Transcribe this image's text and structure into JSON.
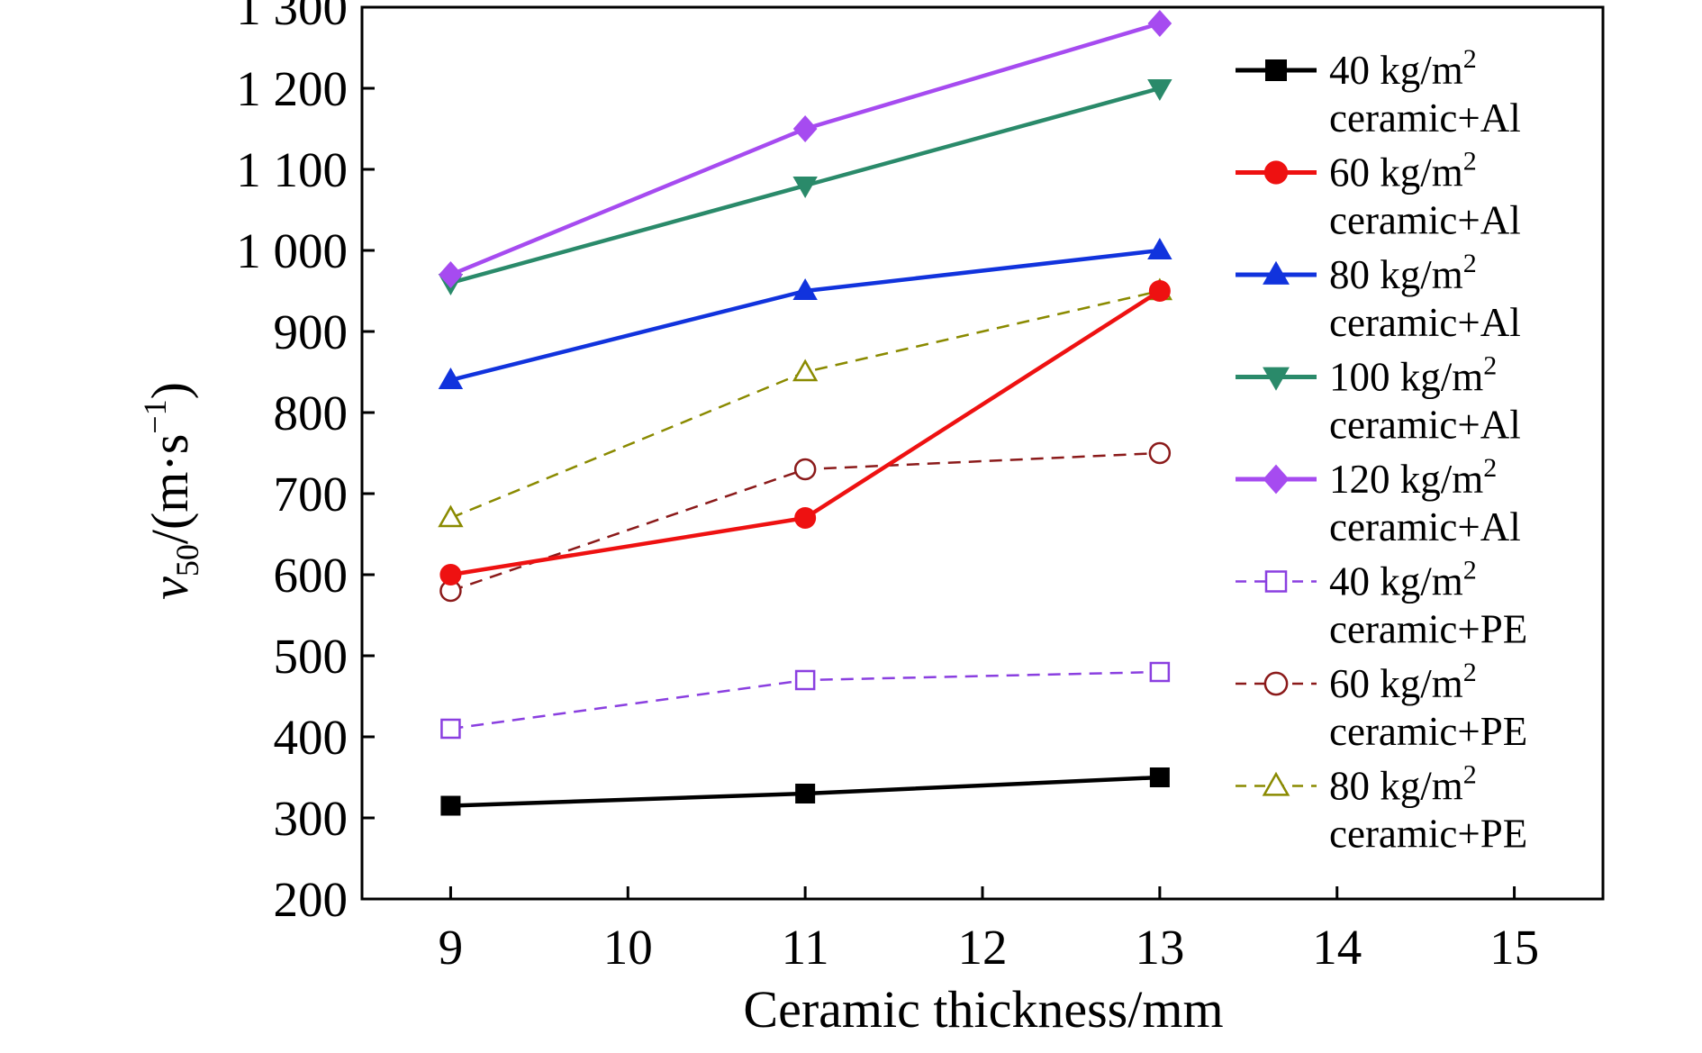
{
  "chart_data": {
    "type": "line",
    "title": "",
    "xlabel": "Ceramic thickness/mm",
    "ylabel": {
      "var": "v",
      "sub": "50",
      "unit_pre": "/(m·s",
      "unit_sup": "−1",
      "unit_post": ")"
    },
    "xlim": [
      8.5,
      15.5
    ],
    "ylim": [
      200,
      1300
    ],
    "x_ticks": [
      9,
      10,
      11,
      12,
      13,
      14,
      15
    ],
    "x_tick_labels": [
      "9",
      "10",
      "11",
      "12",
      "13",
      "14",
      "15"
    ],
    "y_ticks": [
      200,
      300,
      400,
      500,
      600,
      700,
      800,
      900,
      1000,
      1100,
      1200,
      1300
    ],
    "y_tick_labels": [
      "200",
      "300",
      "400",
      "500",
      "600",
      "700",
      "800",
      "900",
      "1 000",
      "1 100",
      "1 200",
      "1 300"
    ],
    "grid": false,
    "legend_position": "right",
    "x": [
      9,
      11,
      13
    ],
    "series": [
      {
        "name_line1": "40 kg/m",
        "name_sup": "2",
        "name_line2": "ceramic+Al",
        "values": [
          315,
          330,
          350
        ],
        "color": "#000000",
        "marker": "square-filled",
        "dashed": false
      },
      {
        "name_line1": "60 kg/m",
        "name_sup": "2",
        "name_line2": "ceramic+Al",
        "values": [
          600,
          670,
          950
        ],
        "color": "#ee1111",
        "marker": "circle-filled",
        "dashed": false
      },
      {
        "name_line1": "80 kg/m",
        "name_sup": "2",
        "name_line2": "ceramic+Al",
        "values": [
          840,
          950,
          1000
        ],
        "color": "#1133dd",
        "marker": "triangle-up-filled",
        "dashed": false
      },
      {
        "name_line1": "100 kg/m",
        "name_sup": "2",
        "name_line2": "ceramic+Al",
        "values": [
          960,
          1080,
          1200
        ],
        "color": "#2a8a6a",
        "marker": "triangle-down-filled",
        "dashed": false
      },
      {
        "name_line1": "120 kg/m",
        "name_sup": "2",
        "name_line2": "ceramic+Al",
        "values": [
          970,
          1150,
          1280
        ],
        "color": "#a64bf0",
        "marker": "diamond-filled",
        "dashed": false
      },
      {
        "name_line1": "40 kg/m",
        "name_sup": "2",
        "name_line2": "ceramic+PE",
        "values": [
          410,
          470,
          480
        ],
        "color": "#8a3fe0",
        "marker": "square-open",
        "dashed": true
      },
      {
        "name_line1": "60 kg/m",
        "name_sup": "2",
        "name_line2": "ceramic+PE",
        "values": [
          580,
          730,
          750
        ],
        "color": "#8b1a1a",
        "marker": "circle-open",
        "dashed": true
      },
      {
        "name_line1": "80 kg/m",
        "name_sup": "2",
        "name_line2": "ceramic+PE",
        "values": [
          670,
          850,
          950
        ],
        "color": "#8a8a00",
        "marker": "triangle-up-open",
        "dashed": true
      }
    ]
  }
}
